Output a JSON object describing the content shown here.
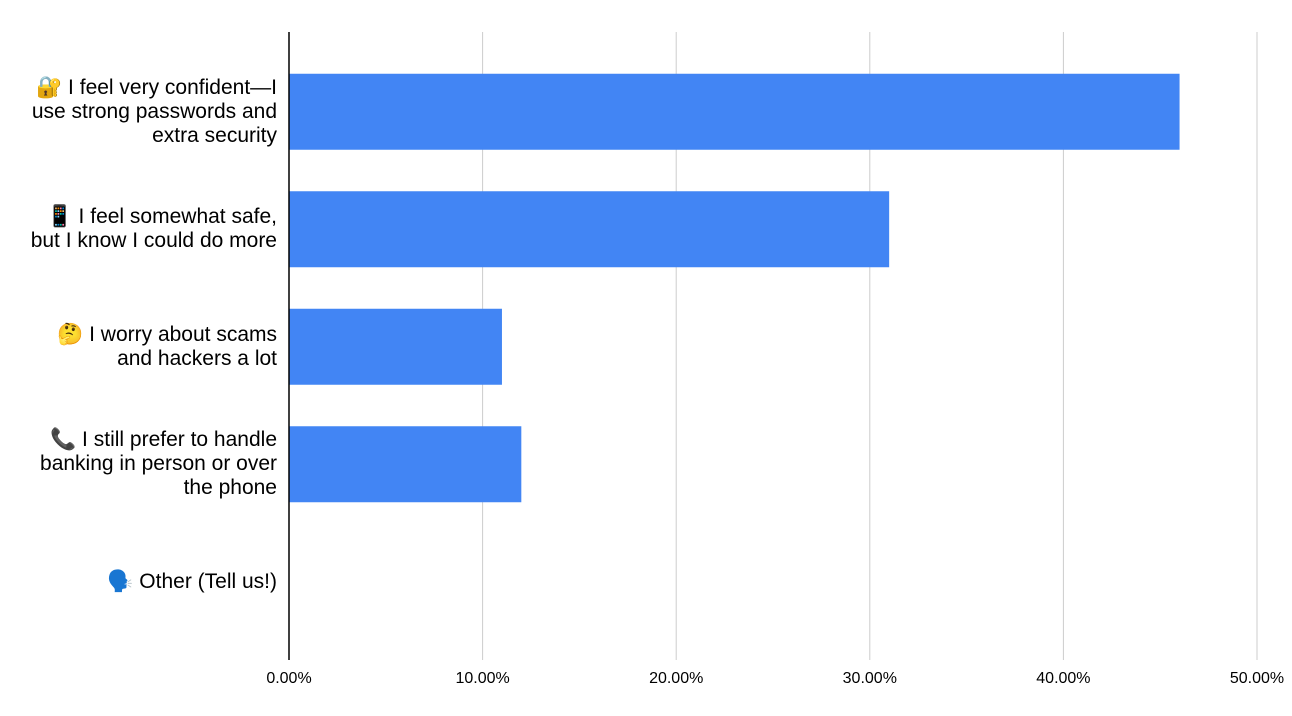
{
  "chart_data": {
    "type": "bar",
    "orientation": "horizontal",
    "categories": [
      "🔐 I feel very confident—I use strong passwords and extra security",
      "📱 I feel somewhat safe, but I know I could do more",
      "🤔 I worry about scams and hackers a lot",
      "📞 I still prefer to handle banking in person or over the phone",
      "🗣️ Other (Tell us!)"
    ],
    "values": [
      46,
      31,
      11,
      12,
      0
    ],
    "color": "#4285f4",
    "xlim": [
      0,
      50
    ],
    "xticks": [
      {
        "value": 0,
        "label": "0.00%"
      },
      {
        "value": 10,
        "label": "10.00%"
      },
      {
        "value": 20,
        "label": "20.00%"
      },
      {
        "value": 30,
        "label": "30.00%"
      },
      {
        "value": 40,
        "label": "40.00%"
      },
      {
        "value": 50,
        "label": "50.00%"
      }
    ],
    "grid": true
  }
}
